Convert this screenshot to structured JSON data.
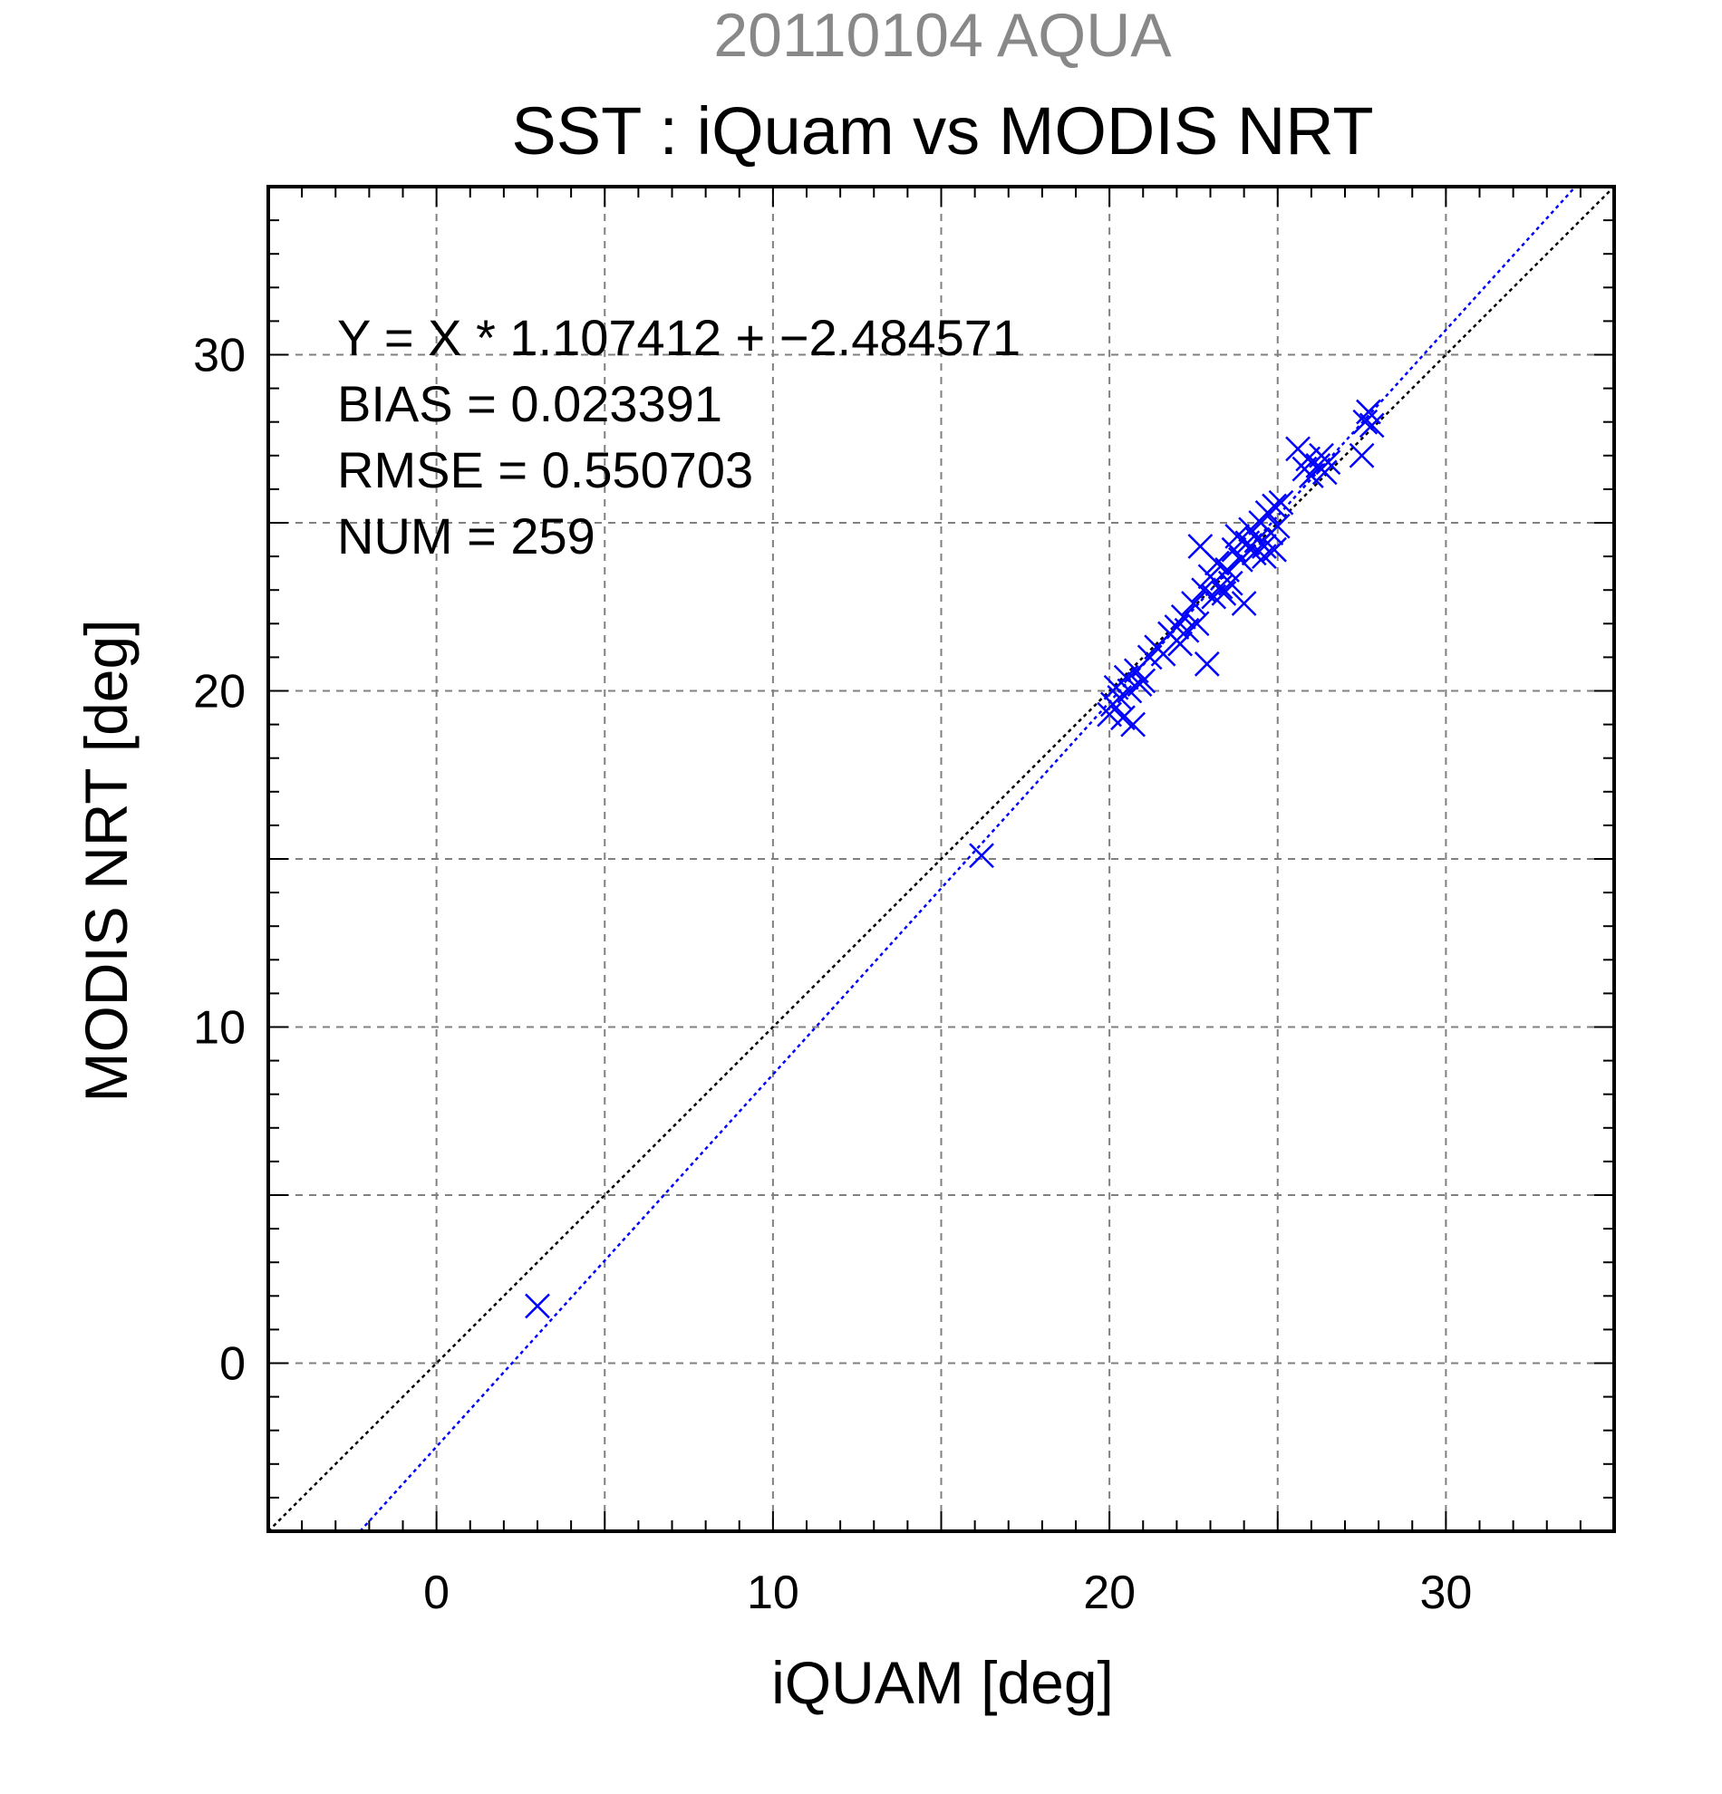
{
  "chart_data": {
    "type": "scatter",
    "supertitle": "20110104 AQUA",
    "title": "SST : iQuam vs MODIS NRT",
    "xlabel": "iQUAM [deg]",
    "ylabel": "MODIS NRT [deg]",
    "xlim": [
      -5,
      35
    ],
    "ylim": [
      -5,
      35
    ],
    "xticks": [
      0,
      10,
      20,
      30
    ],
    "yticks": [
      0,
      10,
      20,
      30
    ],
    "minor_step": 1,
    "grid_step": 5,
    "grid": true,
    "annotations": [
      "Y = X * 1.107412 + −2.484571",
      "BIAS = 0.023391",
      "RMSE = 0.550703",
      "NUM = 259"
    ],
    "lines": [
      {
        "kind": "identity",
        "slope": 1,
        "intercept": 0,
        "color": "#000000",
        "style": "dotted"
      },
      {
        "kind": "regression",
        "slope": 1.107412,
        "intercept": -2.484571,
        "color": "#0000ff",
        "style": "dotted"
      }
    ],
    "series": [
      {
        "color": "#0000ff",
        "marker": "x",
        "points": [
          [
            3.0,
            1.7
          ],
          [
            16.2,
            15.1
          ],
          [
            20.0,
            19.3
          ],
          [
            20.1,
            19.6
          ],
          [
            20.2,
            20.1
          ],
          [
            20.3,
            19.8
          ],
          [
            20.4,
            19.2
          ],
          [
            20.5,
            20.4
          ],
          [
            20.6,
            20.0
          ],
          [
            20.7,
            19.0
          ],
          [
            20.8,
            20.6
          ],
          [
            20.9,
            20.2
          ],
          [
            21.0,
            20.3
          ],
          [
            21.2,
            21.0
          ],
          [
            21.4,
            21.3
          ],
          [
            21.6,
            21.1
          ],
          [
            21.8,
            21.7
          ],
          [
            22.0,
            21.9
          ],
          [
            22.1,
            21.4
          ],
          [
            22.2,
            22.2
          ],
          [
            22.3,
            21.8
          ],
          [
            22.5,
            22.6
          ],
          [
            22.6,
            22.0
          ],
          [
            22.8,
            23.0
          ],
          [
            22.9,
            20.8
          ],
          [
            23.0,
            23.4
          ],
          [
            23.1,
            22.8
          ],
          [
            23.2,
            23.8
          ],
          [
            23.3,
            23.1
          ],
          [
            23.4,
            22.9
          ],
          [
            23.5,
            23.6
          ],
          [
            23.6,
            23.2
          ],
          [
            22.7,
            24.3
          ],
          [
            23.7,
            24.2
          ],
          [
            23.8,
            24.6
          ],
          [
            23.9,
            23.9
          ],
          [
            24.0,
            22.6
          ],
          [
            24.1,
            24.4
          ],
          [
            24.2,
            24.8
          ],
          [
            24.3,
            24.1
          ],
          [
            24.4,
            24.5
          ],
          [
            24.5,
            25.0
          ],
          [
            24.6,
            24.3
          ],
          [
            24.7,
            25.3
          ],
          [
            24.8,
            24.7
          ],
          [
            24.9,
            25.5
          ],
          [
            25.0,
            24.9
          ],
          [
            25.1,
            25.6
          ],
          [
            24.6,
            24.0
          ],
          [
            24.9,
            24.2
          ],
          [
            25.6,
            27.2
          ],
          [
            25.8,
            26.6
          ],
          [
            25.9,
            26.9
          ],
          [
            26.0,
            26.4
          ],
          [
            26.2,
            26.7
          ],
          [
            26.3,
            27.0
          ],
          [
            26.4,
            26.5
          ],
          [
            26.5,
            26.8
          ],
          [
            27.5,
            27.0
          ],
          [
            27.6,
            28.0
          ],
          [
            27.7,
            28.3
          ],
          [
            27.8,
            27.9
          ]
        ]
      }
    ]
  }
}
